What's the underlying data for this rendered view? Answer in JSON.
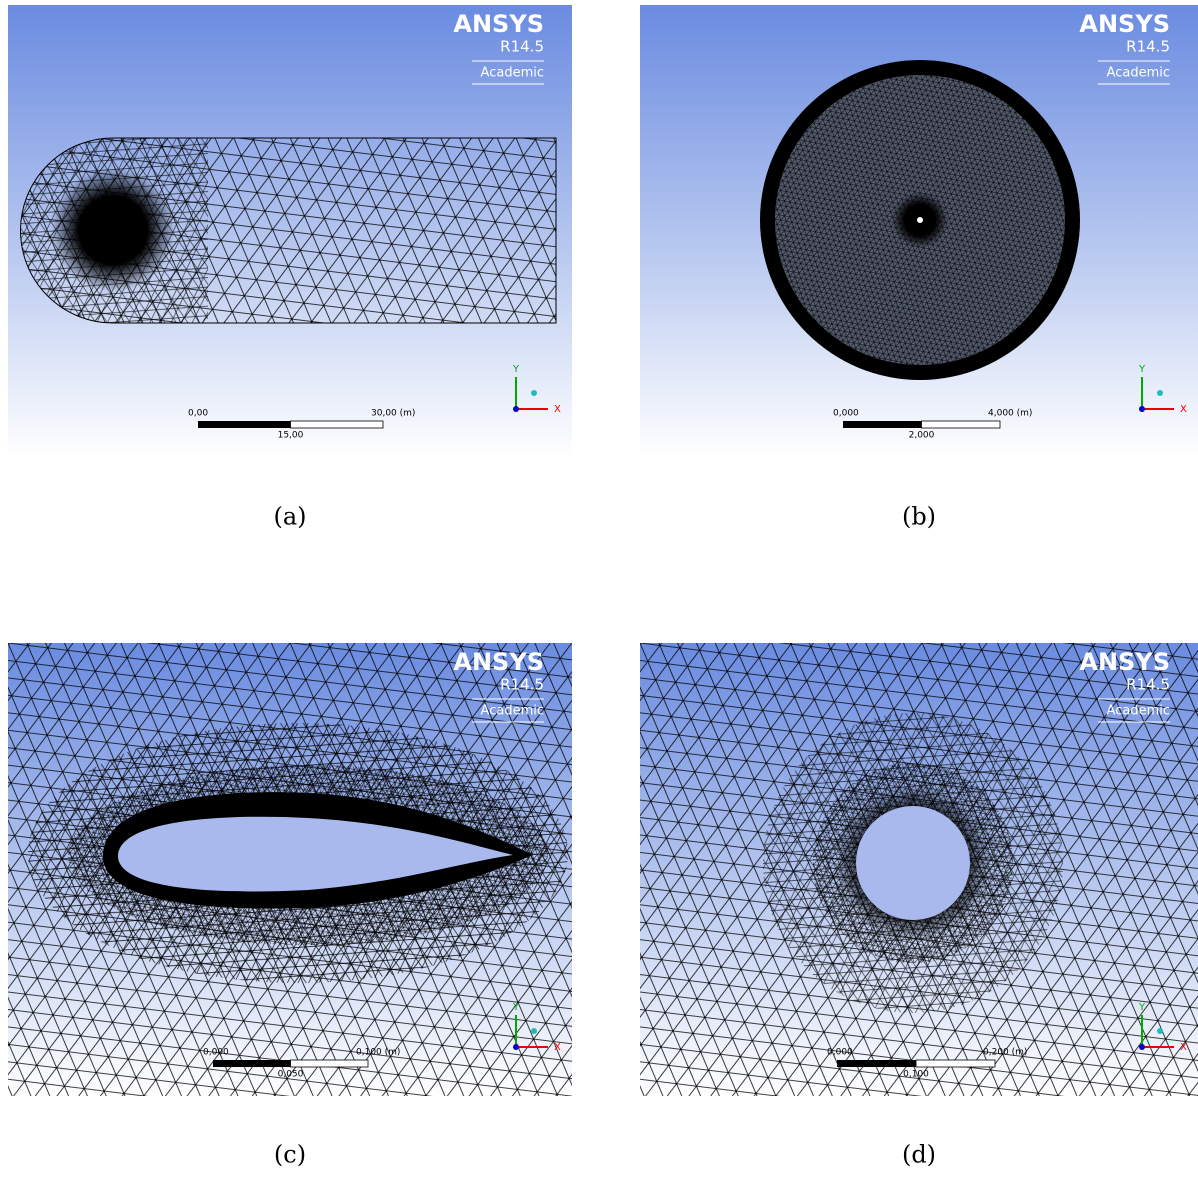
{
  "panels": [
    {
      "caption": "(a)",
      "logo": {
        "brand": "ANSYS",
        "version": "R14.5",
        "license": "Academic"
      },
      "scale_bar": {
        "start": "0,00",
        "end": "30,00 (m)",
        "mid": "15,00"
      },
      "axes": {
        "x": "X",
        "y": "Y"
      }
    },
    {
      "caption": "(b)",
      "logo": {
        "brand": "ANSYS",
        "version": "R14.5",
        "license": "Academic"
      },
      "scale_bar": {
        "start": "0,000",
        "end": "4,000 (m)",
        "mid": "2,000"
      },
      "axes": {
        "x": "X",
        "y": "Y"
      }
    },
    {
      "caption": "(c)",
      "logo": {
        "brand": "ANSYS",
        "version": "R14.5",
        "license": "Academic"
      },
      "scale_bar": {
        "start": "0,000",
        "end": "0,100 (m)",
        "mid": "0,050"
      },
      "axes": {
        "x": "X",
        "y": "Y"
      }
    },
    {
      "caption": "(d)",
      "logo": {
        "brand": "ANSYS",
        "version": "R14.5",
        "license": "Academic"
      },
      "scale_bar": {
        "start": "0,000",
        "end": "0,200 (m)",
        "mid": "0,100"
      },
      "axes": {
        "x": "X",
        "y": "Y"
      }
    }
  ]
}
